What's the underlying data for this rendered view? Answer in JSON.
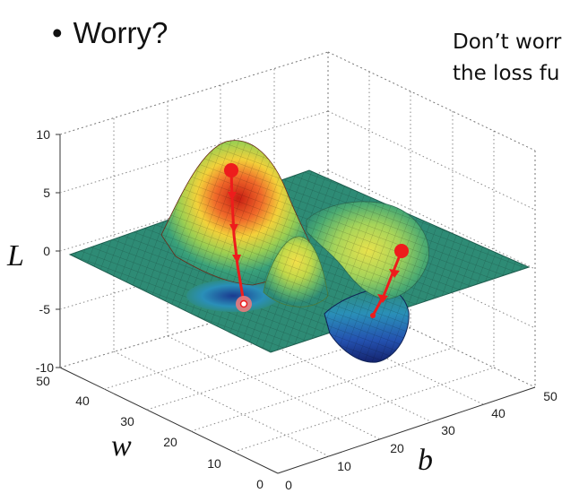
{
  "slide": {
    "bullet_symbol": "•",
    "bullet_text": "Worry?",
    "note_lines": [
      "Don’t worr",
      "the loss fu"
    ]
  },
  "plot": {
    "z_label": "L",
    "w_label": "w",
    "b_label": "b",
    "z_ticks": [
      "10",
      "5",
      "0",
      "-5",
      "-10"
    ],
    "w_ticks": [
      "50",
      "40",
      "30",
      "20",
      "10",
      "0"
    ],
    "b_ticks": [
      "0",
      "10",
      "20",
      "30",
      "40",
      "50"
    ],
    "colors": {
      "surface_flat": "#2e8b75",
      "peak": "#d7301f",
      "valley": "#1f3e9a",
      "path": "#ee1c1c",
      "grid": "#666666"
    }
  }
}
